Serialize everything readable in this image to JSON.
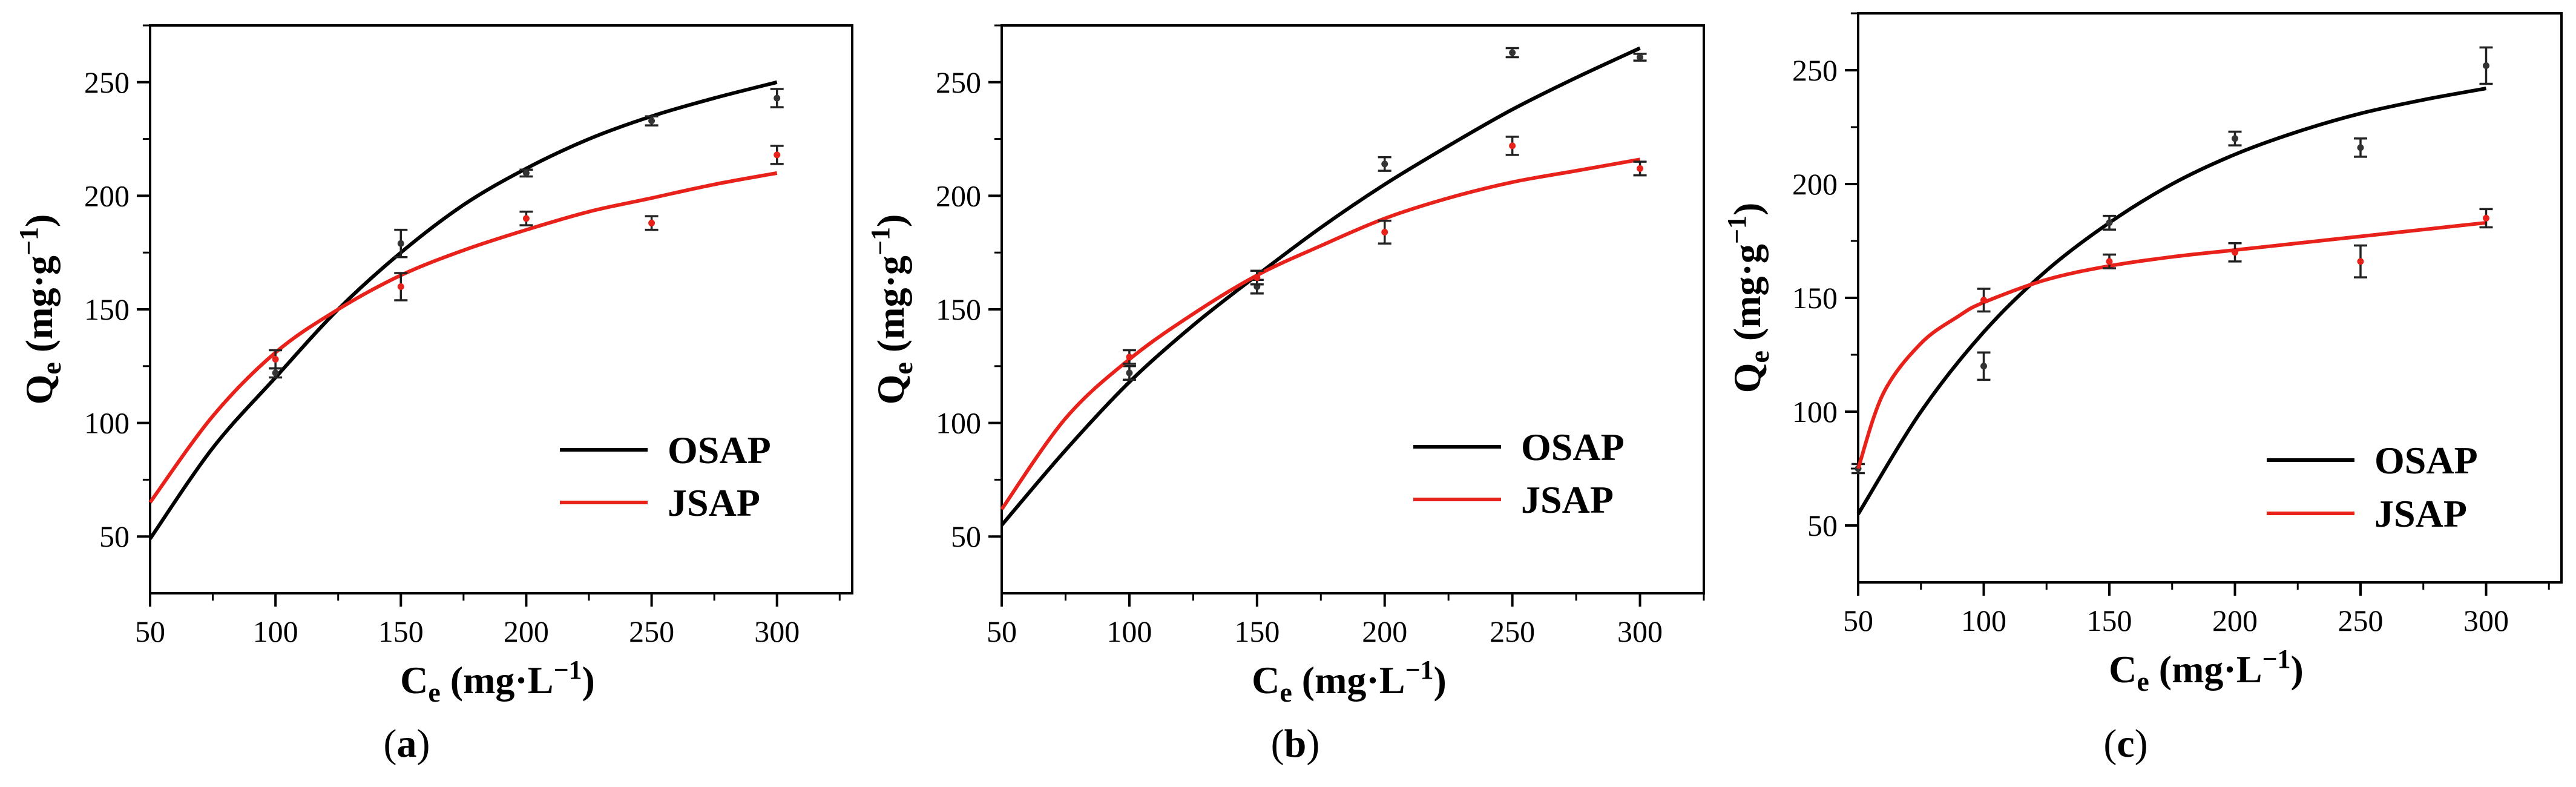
{
  "chart_data": [
    {
      "panel": "a",
      "type": "scatter",
      "caption": "a",
      "xlabel": "Ce (mg·L−1)",
      "ylabel": "Qe (mg·g−1)",
      "xlim": [
        50,
        330
      ],
      "ylim": [
        25,
        275
      ],
      "xticks": [
        50,
        100,
        150,
        200,
        250,
        300
      ],
      "yticks": [
        50,
        100,
        150,
        200,
        250
      ],
      "grid": false,
      "legend_position": "bottom-right",
      "series": [
        {
          "name": "OSAP",
          "color": "#000000",
          "points": [
            {
              "x": 100,
              "y": 122,
              "err": 2
            },
            {
              "x": 150,
              "y": 179,
              "err": 6
            },
            {
              "x": 200,
              "y": 210,
              "err": 1.5
            },
            {
              "x": 250,
              "y": 233,
              "err": 2
            },
            {
              "x": 300,
              "y": 243,
              "err": 4
            }
          ],
          "fit": {
            "x": [
              50,
              75,
              100,
              125,
              150,
              175,
              200,
              225,
              250,
              275,
              300
            ],
            "y": [
              49,
              89,
              120,
              150,
              175,
              196,
              212,
              225,
              235,
              243,
              250
            ]
          }
        },
        {
          "name": "JSAP",
          "color": "#e8221b",
          "points": [
            {
              "x": 100,
              "y": 128,
              "err": 4
            },
            {
              "x": 150,
              "y": 160,
              "err": 6
            },
            {
              "x": 200,
              "y": 190,
              "err": 3
            },
            {
              "x": 250,
              "y": 188,
              "err": 3
            },
            {
              "x": 300,
              "y": 218,
              "err": 4
            }
          ],
          "fit": {
            "x": [
              50,
              75,
              100,
              125,
              150,
              175,
              200,
              225,
              250,
              275,
              300
            ],
            "y": [
              65,
              103,
              131,
              150,
              165,
              176,
              185,
              193,
              199,
              205,
              210
            ]
          }
        }
      ]
    },
    {
      "panel": "b",
      "type": "scatter",
      "caption": "b",
      "xlabel": "Ce (mg·L−1)",
      "ylabel": "Qe (mg·g−1)",
      "xlim": [
        50,
        325
      ],
      "ylim": [
        25,
        275
      ],
      "xticks": [
        50,
        100,
        150,
        200,
        250,
        300
      ],
      "yticks": [
        50,
        100,
        150,
        200,
        250
      ],
      "grid": false,
      "legend_position": "bottom-right",
      "series": [
        {
          "name": "OSAP",
          "color": "#000000",
          "points": [
            {
              "x": 100,
              "y": 122,
              "err": 3
            },
            {
              "x": 150,
              "y": 160,
              "err": 3
            },
            {
              "x": 200,
              "y": 214,
              "err": 3
            },
            {
              "x": 250,
              "y": 263,
              "err": 2
            },
            {
              "x": 300,
              "y": 261,
              "err": 1.5
            }
          ],
          "fit": {
            "x": [
              50,
              75,
              100,
              125,
              150,
              175,
              200,
              225,
              250,
              275,
              300
            ],
            "y": [
              55,
              88,
              118,
              143,
              165,
              186,
              205,
              222,
              238,
              252,
              265
            ]
          }
        },
        {
          "name": "JSAP",
          "color": "#e8221b",
          "points": [
            {
              "x": 100,
              "y": 129,
              "err": 3
            },
            {
              "x": 150,
              "y": 164,
              "err": 3
            },
            {
              "x": 200,
              "y": 184,
              "err": 5
            },
            {
              "x": 250,
              "y": 222,
              "err": 4
            },
            {
              "x": 300,
              "y": 212,
              "err": 3
            }
          ],
          "fit": {
            "x": [
              50,
              75,
              100,
              125,
              150,
              175,
              200,
              225,
              250,
              275,
              300
            ],
            "y": [
              62,
              102,
              128,
              148,
              165,
              178,
              190,
              199,
              206,
              211,
              216
            ]
          }
        }
      ]
    },
    {
      "panel": "c",
      "type": "scatter",
      "caption": "c",
      "xlabel": "Ce (mg·L−1)",
      "ylabel": "Qe (mg·g−1)",
      "xlim": [
        50,
        330
      ],
      "ylim": [
        25,
        275
      ],
      "xticks": [
        50,
        100,
        150,
        200,
        250,
        300
      ],
      "yticks": [
        50,
        100,
        150,
        200,
        250
      ],
      "grid": false,
      "legend_position": "bottom-right",
      "series": [
        {
          "name": "OSAP",
          "color": "#000000",
          "points": [
            {
              "x": 50,
              "y": 75,
              "err": 2
            },
            {
              "x": 100,
              "y": 120,
              "err": 6
            },
            {
              "x": 150,
              "y": 183,
              "err": 3
            },
            {
              "x": 200,
              "y": 220,
              "err": 3
            },
            {
              "x": 250,
              "y": 216,
              "err": 4
            },
            {
              "x": 300,
              "y": 252,
              "err": 8
            }
          ],
          "fit": {
            "x": [
              50,
              75,
              100,
              125,
              150,
              175,
              200,
              225,
              250,
              275,
              300
            ],
            "y": [
              55,
              100,
              135,
              162,
              183,
              200,
              213,
              223,
              231,
              237,
              242
            ]
          }
        },
        {
          "name": "JSAP",
          "color": "#e8221b",
          "points": [
            {
              "x": 100,
              "y": 149,
              "err": 5
            },
            {
              "x": 150,
              "y": 166,
              "err": 3
            },
            {
              "x": 200,
              "y": 170,
              "err": 4
            },
            {
              "x": 250,
              "y": 166,
              "err": 7
            },
            {
              "x": 300,
              "y": 185,
              "err": 4
            }
          ],
          "fit": {
            "x": [
              50,
              60,
              75,
              90,
              100,
              125,
              150,
              175,
              200,
              225,
              250,
              275,
              300
            ],
            "y": [
              75,
              108,
              130,
              142,
              148,
              158,
              164,
              168,
              171,
              174,
              177,
              180,
              183
            ]
          }
        }
      ]
    }
  ]
}
